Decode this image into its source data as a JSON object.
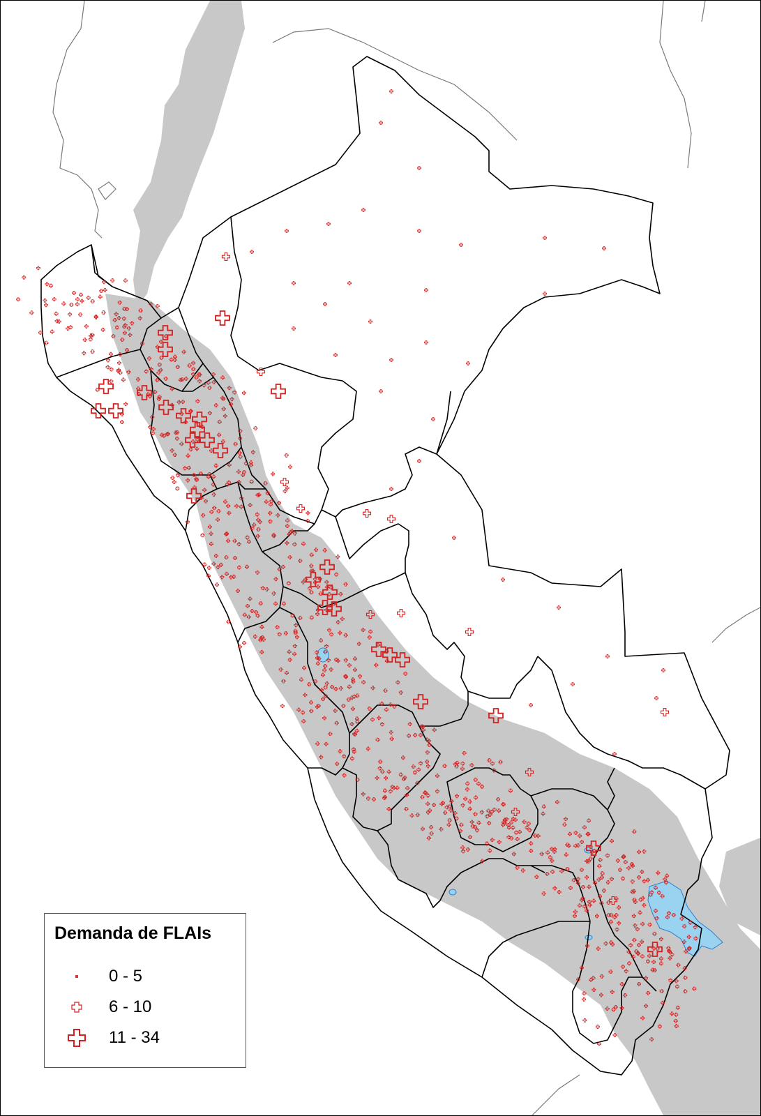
{
  "map": {
    "country": "Peru",
    "colors": {
      "background": "#ffffff",
      "andes_relief": "#c8c8c8",
      "boundary": "#000000",
      "foreign_boundary": "#7a7a7a",
      "lake": "#9ad3f0",
      "lake_outline": "#2a7fd0",
      "symbol": "#d42020"
    },
    "layers": [
      "country-outline",
      "department-boundaries",
      "andes-relief",
      "lakes",
      "demand-points"
    ]
  },
  "legend": {
    "title": "Demanda de FLAIs",
    "items": [
      {
        "label": "0 - 5",
        "symbol": "cross-small-icon"
      },
      {
        "label": "6 - 10",
        "symbol": "cross-medium-icon"
      },
      {
        "label": "11 - 34",
        "symbol": "cross-large-icon"
      }
    ]
  }
}
